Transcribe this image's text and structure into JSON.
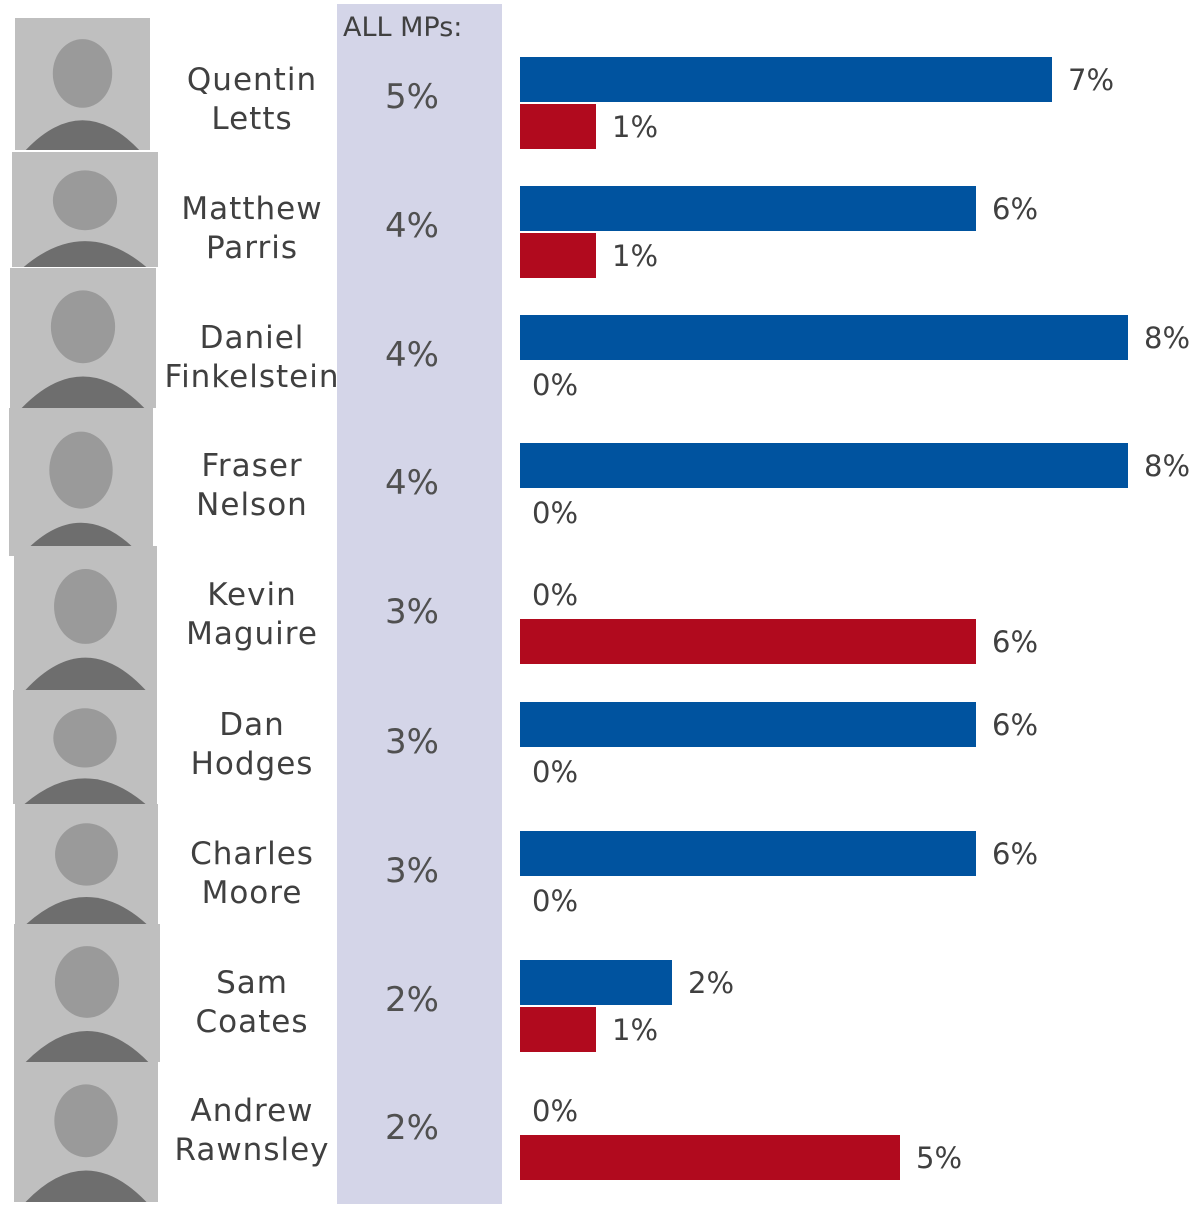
{
  "header": {
    "all_mps_label": "ALL MPs:"
  },
  "colors": {
    "conservative": "#00539f",
    "labour": "#b10a1e",
    "all_mps_band": "#d4d5e8",
    "photo_placeholder": "#bfbfbf"
  },
  "chart_data": {
    "type": "bar",
    "orientation": "horizontal",
    "categories": [
      "Quentin Letts",
      "Matthew Parris",
      "Daniel Finkelstein",
      "Fraser Nelson",
      "Kevin Maguire",
      "Dan Hodges",
      "Charles Moore",
      "Sam Coates",
      "Andrew Rawnsley"
    ],
    "name_lines": [
      [
        "Quentin",
        "Letts"
      ],
      [
        "Matthew",
        "Parris"
      ],
      [
        "Daniel",
        "Finkelstein"
      ],
      [
        "Fraser",
        "Nelson"
      ],
      [
        "Kevin",
        "Maguire"
      ],
      [
        "Dan",
        "Hodges"
      ],
      [
        "Charles",
        "Moore"
      ],
      [
        "Sam",
        "Coates"
      ],
      [
        "Andrew",
        "Rawnsley"
      ]
    ],
    "all_mps": [
      "5%",
      "4%",
      "4%",
      "4%",
      "3%",
      "3%",
      "3%",
      "2%",
      "2%"
    ],
    "series": [
      {
        "values": [
          7,
          6,
          8,
          8,
          0,
          6,
          6,
          2,
          0
        ],
        "color": "#00539f"
      },
      {
        "values": [
          1,
          1,
          0,
          0,
          6,
          0,
          0,
          1,
          5
        ],
        "color": "#b10a1e"
      }
    ],
    "value_suffix": "%",
    "xlim": [
      0,
      8
    ],
    "grid": false,
    "legend": "none"
  }
}
